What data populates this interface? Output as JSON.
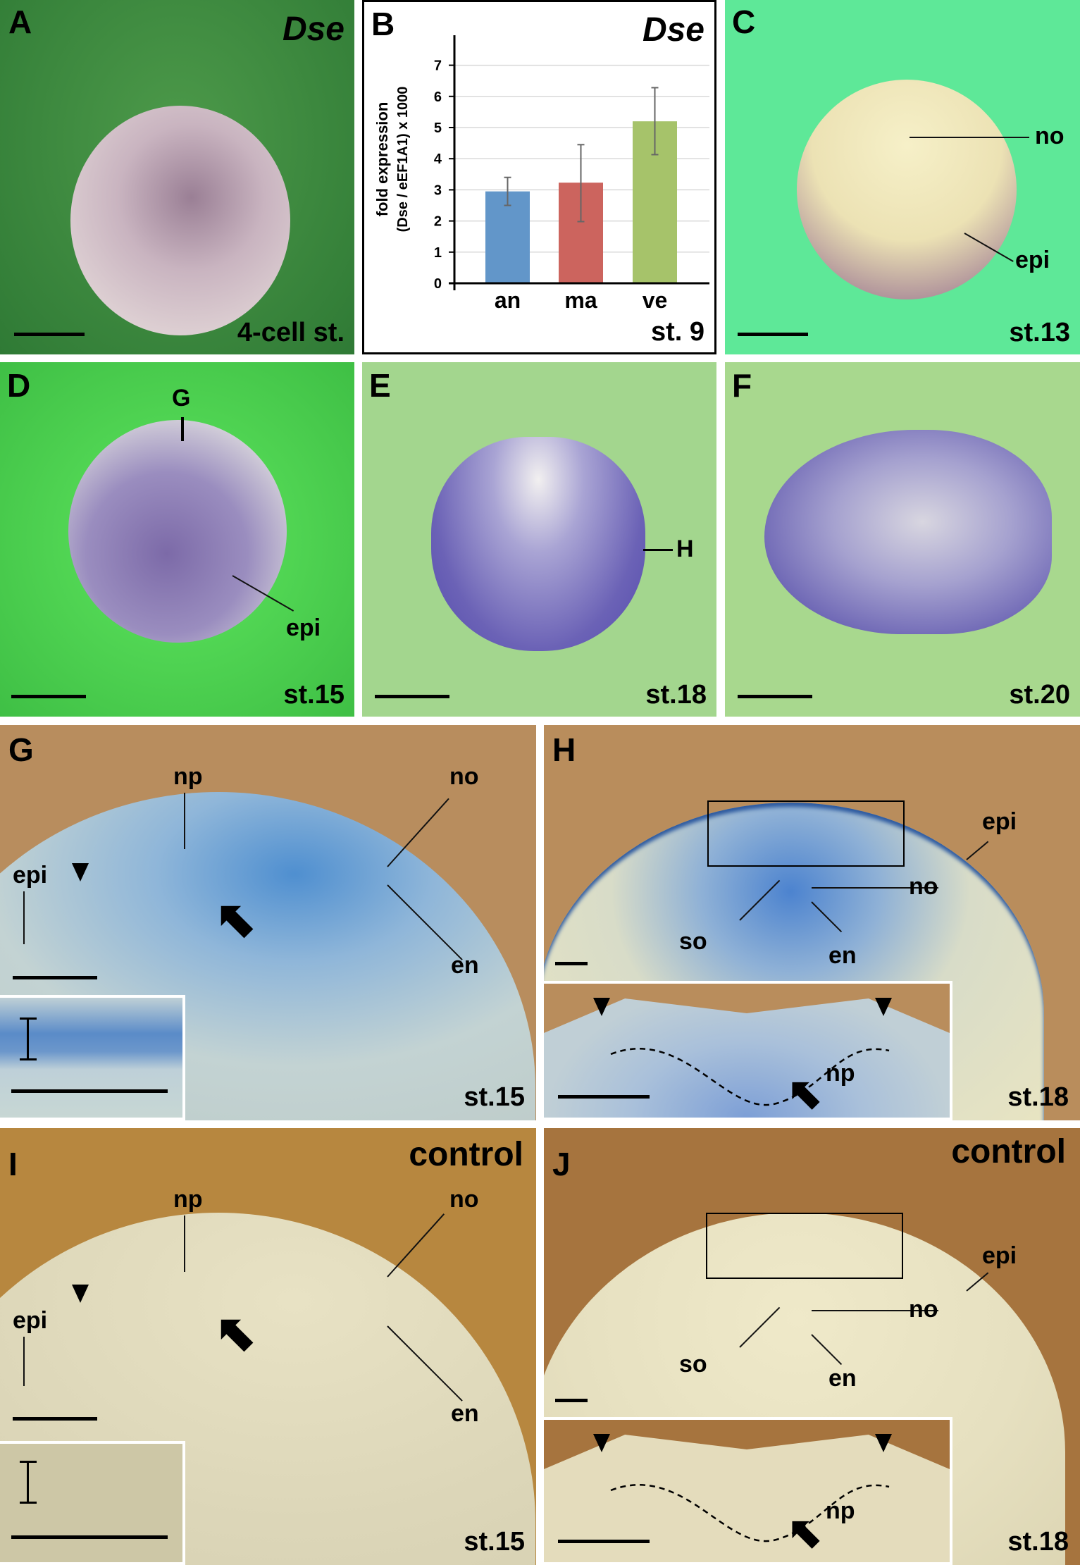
{
  "panels": {
    "A": {
      "letter": "A",
      "gene": "Dse",
      "stage": "4-cell st."
    },
    "B": {
      "letter": "B",
      "gene": "Dse",
      "stage": "st. 9"
    },
    "C": {
      "letter": "C",
      "stage": "st.13",
      "labels": {
        "no": "no",
        "epi": "epi"
      }
    },
    "D": {
      "letter": "D",
      "stage": "st.15",
      "labels": {
        "G": "G",
        "epi": "epi"
      }
    },
    "E": {
      "letter": "E",
      "stage": "st.18",
      "labels": {
        "H": "H"
      }
    },
    "F": {
      "letter": "F",
      "stage": "st.20"
    },
    "G": {
      "letter": "G",
      "stage": "st.15",
      "labels": {
        "np": "np",
        "no": "no",
        "epi": "epi",
        "en": "en"
      }
    },
    "H": {
      "letter": "H",
      "stage": "st.18",
      "labels": {
        "epi": "epi",
        "no": "no",
        "so": "so",
        "en": "en",
        "np": "np"
      }
    },
    "I": {
      "letter": "I",
      "condition": "control",
      "stage": "st.15",
      "labels": {
        "np": "np",
        "no": "no",
        "epi": "epi",
        "en": "en"
      }
    },
    "J": {
      "letter": "J",
      "condition": "control",
      "stage": "st.18",
      "labels": {
        "epi": "epi",
        "no": "no",
        "so": "so",
        "en": "en",
        "np": "np"
      }
    }
  },
  "chart_data": {
    "type": "bar",
    "title": "Dse",
    "ylabel_line1": "fold expression",
    "ylabel_line2": "(Dse / eEF1A1) x 1000",
    "xlabel": "",
    "categories": [
      "an",
      "ma",
      "ve"
    ],
    "values": [
      2.95,
      3.23,
      5.2
    ],
    "error_low": [
      2.5,
      1.98,
      4.13
    ],
    "error_high": [
      3.4,
      4.45,
      6.28
    ],
    "colors": [
      "#6296c9",
      "#cc645e",
      "#a6c36a"
    ],
    "ylim": [
      0,
      8
    ],
    "yticks": [
      "0",
      "1",
      "2",
      "3",
      "4",
      "5",
      "6",
      "7"
    ],
    "grid": true,
    "annotation": "st. 9"
  }
}
